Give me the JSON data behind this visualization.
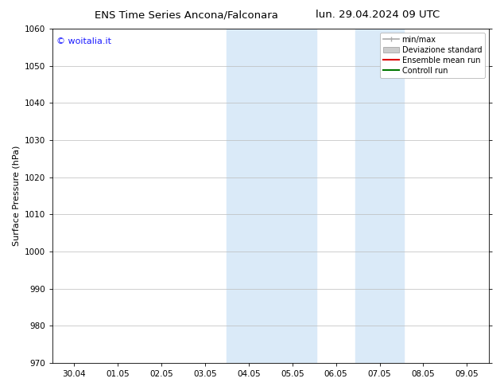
{
  "title_left": "ENS Time Series Ancona/Falconara",
  "title_right": "lun. 29.04.2024 09 UTC",
  "ylabel": "Surface Pressure (hPa)",
  "ylim": [
    970,
    1060
  ],
  "yticks": [
    970,
    980,
    990,
    1000,
    1010,
    1020,
    1030,
    1040,
    1050,
    1060
  ],
  "xtick_labels": [
    "30.04",
    "01.05",
    "02.05",
    "03.05",
    "04.05",
    "05.05",
    "06.05",
    "07.05",
    "08.05",
    "09.05"
  ],
  "xtick_positions": [
    0,
    1,
    2,
    3,
    4,
    5,
    6,
    7,
    8,
    9
  ],
  "xlim": [
    -0.5,
    9.5
  ],
  "shaded_regions": [
    {
      "xstart": 3.5,
      "xend": 5.55
    },
    {
      "xstart": 6.45,
      "xend": 7.55
    }
  ],
  "shaded_color": "#daeaf8",
  "watermark": "© woitalia.it",
  "watermark_color": "#1a1aff",
  "legend_entries": [
    {
      "label": "min/max",
      "color": "#aaaaaa",
      "style": "minmax"
    },
    {
      "label": "Deviazione standard",
      "color": "#cccccc",
      "style": "box"
    },
    {
      "label": "Ensemble mean run",
      "color": "#dd0000",
      "style": "line"
    },
    {
      "label": "Controll run",
      "color": "#007700",
      "style": "line"
    }
  ],
  "bg_color": "#ffffff",
  "grid_color": "#bbbbbb",
  "title_fontsize": 9.5,
  "axis_fontsize": 8,
  "tick_fontsize": 7.5,
  "legend_fontsize": 7,
  "watermark_fontsize": 8
}
